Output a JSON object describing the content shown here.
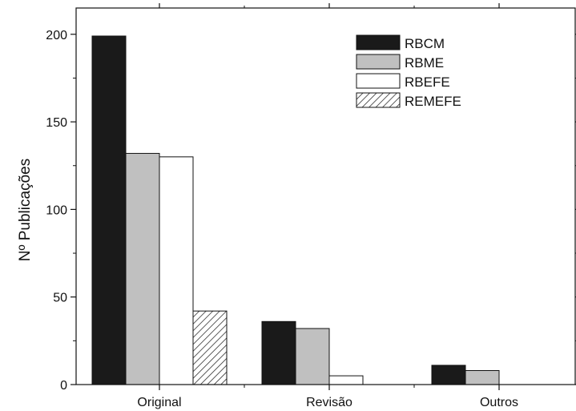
{
  "chart_data": {
    "type": "bar",
    "title": "",
    "xlabel": "",
    "ylabel": "Nº Publicações",
    "categories": [
      "Original",
      "Revisão",
      "Outros"
    ],
    "ylim": [
      0,
      215
    ],
    "yticks": [
      0,
      50,
      100,
      150,
      200
    ],
    "grid": false,
    "legend_position": "top-right",
    "series": [
      {
        "name": "RBCM",
        "values": [
          199,
          36,
          11
        ],
        "fill": "#1a1a1a",
        "pattern": "solid"
      },
      {
        "name": "RBME",
        "values": [
          132,
          32,
          8
        ],
        "fill": "#c0c0c0",
        "pattern": "solid"
      },
      {
        "name": "RBEFE",
        "values": [
          130,
          5,
          0
        ],
        "fill": "#ffffff",
        "pattern": "solid"
      },
      {
        "name": "REMEFE",
        "values": [
          42,
          0,
          0
        ],
        "fill": "#ffffff",
        "pattern": "hatch"
      }
    ]
  }
}
